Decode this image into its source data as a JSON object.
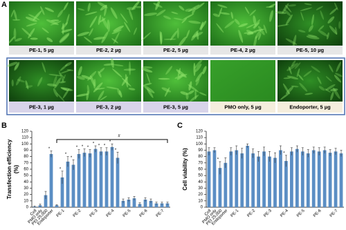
{
  "panel_a": {
    "panel_label": "A",
    "images": [
      {
        "caption": "PE-1, 5 µg"
      },
      {
        "caption": "PE-2, 2 µg"
      },
      {
        "caption": "PE-2, 5 µg"
      },
      {
        "caption": "PE-4, 2 µg"
      },
      {
        "caption": "PE-5, 10 µg"
      },
      {
        "caption": "PE-3, 1 µg"
      },
      {
        "caption": "PE-3, 2 µg"
      },
      {
        "caption": "PE-3, 5 µg"
      },
      {
        "caption": "PMO only, 5 µg"
      },
      {
        "caption": "Endoporter, 5 µg"
      }
    ]
  },
  "chart_data": [
    {
      "type": "bar",
      "panel_label": "B",
      "y_label_lines": [
        "Transfection efficiency",
        "(%)"
      ],
      "color": "#5b8ec4",
      "categories": [
        "Cell",
        "PMO only",
        "PEI 25,000",
        "Endoporter",
        null,
        "PE-1",
        null,
        null,
        "PE-2",
        null,
        null,
        "PE-3",
        null,
        null,
        "PE-4",
        null,
        null,
        "PE-5",
        null,
        null,
        "PE-6",
        null,
        null,
        "PE-7",
        null
      ],
      "values": [
        1,
        3,
        19,
        84,
        3,
        47,
        72,
        67,
        84,
        86,
        85,
        92,
        88,
        88,
        95,
        78,
        10,
        12,
        14,
        5,
        12,
        10,
        6,
        6,
        6
      ],
      "errors": [
        1,
        2,
        6,
        5,
        1,
        10,
        8,
        8,
        7,
        6,
        6,
        5,
        6,
        6,
        5,
        9,
        3,
        3,
        3,
        2,
        3,
        3,
        2,
        2,
        2
      ],
      "markers": [
        null,
        null,
        null,
        "*",
        null,
        "*",
        "*",
        "*",
        "*",
        "*",
        "*",
        "*",
        "*",
        "*",
        "*",
        "*",
        null,
        null,
        null,
        null,
        null,
        null,
        null,
        null,
        null
      ],
      "bracket_label": "#",
      "ylim": [
        0,
        120
      ],
      "yticks": [
        0,
        10,
        20,
        30,
        40,
        50,
        60,
        70,
        80,
        90,
        100,
        110,
        120
      ]
    },
    {
      "type": "bar",
      "panel_label": "C",
      "y_label_lines": [
        "Cell viability (%)"
      ],
      "color": "#5b8ec4",
      "categories": [
        "Cell",
        "PMO only",
        "PEI 25,000",
        "Endoporter",
        null,
        "PE-1",
        null,
        null,
        "PE-2",
        null,
        null,
        "PE-3",
        null,
        null,
        "PE-4",
        null,
        null,
        "PE-5",
        null,
        null,
        "PE-6",
        null,
        null,
        "PE-7",
        null
      ],
      "values": [
        88,
        90,
        62,
        70,
        88,
        90,
        85,
        97,
        85,
        80,
        88,
        80,
        78,
        90,
        73,
        88,
        92,
        88,
        85,
        90,
        88,
        90,
        86,
        88,
        85
      ],
      "errors": [
        6,
        4,
        10,
        8,
        6,
        7,
        8,
        3,
        7,
        8,
        7,
        8,
        8,
        7,
        9,
        6,
        5,
        6,
        6,
        5,
        6,
        5,
        5,
        5,
        5
      ],
      "markers": [
        null,
        null,
        "*",
        null,
        null,
        null,
        null,
        null,
        null,
        null,
        null,
        null,
        null,
        null,
        "*",
        null,
        null,
        null,
        null,
        null,
        null,
        null,
        null,
        null,
        null
      ],
      "ylim": [
        0,
        120
      ],
      "yticks": [
        0,
        10,
        20,
        30,
        40,
        50,
        60,
        70,
        80,
        90,
        100,
        110,
        120
      ]
    }
  ]
}
